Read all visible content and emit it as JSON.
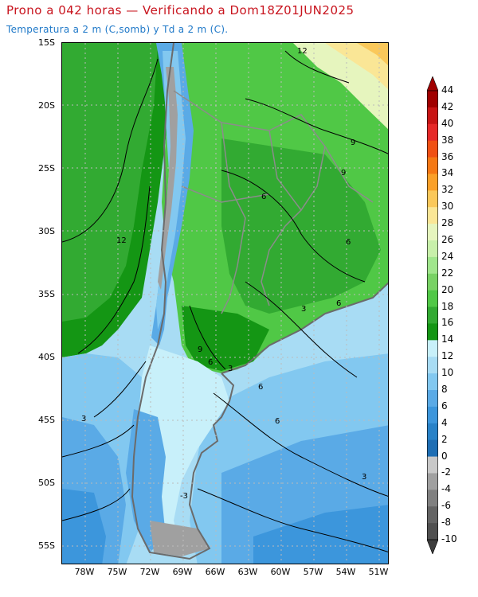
{
  "header": {
    "title": "Prono a 042 horas — Verificando a Dom18Z01JUN2025",
    "subtitle": "Temperatura a 2 m (C,somb) y Td a 2 m (C)."
  },
  "axes": {
    "lat_labels": [
      "15S",
      "20S",
      "25S",
      "30S",
      "35S",
      "40S",
      "45S",
      "50S",
      "55S"
    ],
    "lon_labels": [
      "78W",
      "75W",
      "72W",
      "69W",
      "66W",
      "63W",
      "60W",
      "57W",
      "54W",
      "51W"
    ]
  },
  "contour_labels": [
    "12",
    "9",
    "9",
    "6",
    "6",
    "12",
    "3",
    "6",
    "9",
    "6",
    "3",
    "6",
    "3",
    "6",
    "-3",
    "3"
  ],
  "colorbar": {
    "labels": [
      "44",
      "42",
      "40",
      "38",
      "36",
      "34",
      "32",
      "30",
      "28",
      "26",
      "24",
      "22",
      "20",
      "18",
      "16",
      "14",
      "12",
      "10",
      "8",
      "6",
      "4",
      "2",
      "0",
      "-2",
      "-4",
      "-6",
      "-8",
      "-10"
    ],
    "colors": [
      "#a00000",
      "#c81414",
      "#e62828",
      "#f05014",
      "#f57814",
      "#faa028",
      "#fac85a",
      "#fae696",
      "#e6f5be",
      "#c8f0aa",
      "#a0e68c",
      "#78d264",
      "#50c846",
      "#32aa32",
      "#149614",
      "#c8f0fa",
      "#a8dcf4",
      "#82c8f0",
      "#5aaae6",
      "#3c96dc",
      "#2882c8",
      "#1e6eb4",
      "#c8c8c8",
      "#a0a0a0",
      "#808080",
      "#646464",
      "#505050"
    ],
    "under_color": "#3c3c3c",
    "over_color": "#a00000"
  }
}
